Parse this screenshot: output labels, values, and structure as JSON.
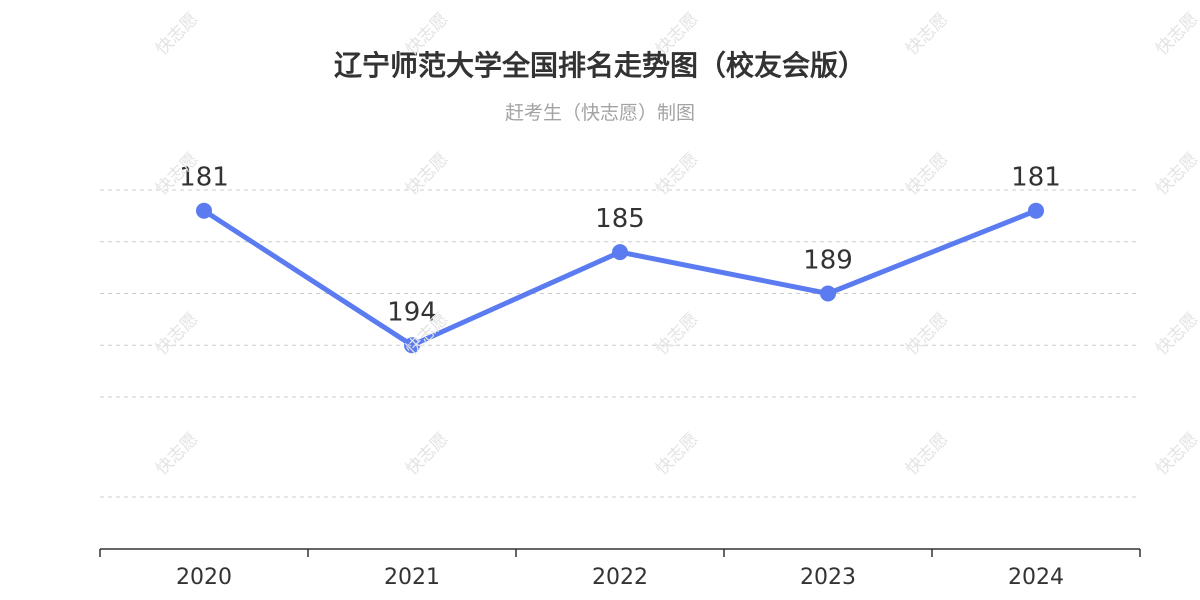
{
  "title": "辽宁师范大学全国排名走势图（校友会版）",
  "subtitle": "赶考生（快志愿）制图",
  "watermark": "快志愿",
  "colors": {
    "line": "#5b7bf0",
    "grid": "#cccccc",
    "axis": "#333333",
    "text": "#333333"
  },
  "chart_data": {
    "type": "line",
    "categories": [
      "2020",
      "2021",
      "2022",
      "2023",
      "2024"
    ],
    "values": [
      181,
      194,
      185,
      189,
      181
    ],
    "y_axis_inverted": true,
    "ylim": [
      179,
      199
    ],
    "gridlines": [
      179,
      184,
      189,
      194,
      199
    ],
    "data_labels": [
      "181",
      "194",
      "185",
      "189",
      "181"
    ],
    "grid": "dashed-horizontal",
    "legend": "none"
  }
}
